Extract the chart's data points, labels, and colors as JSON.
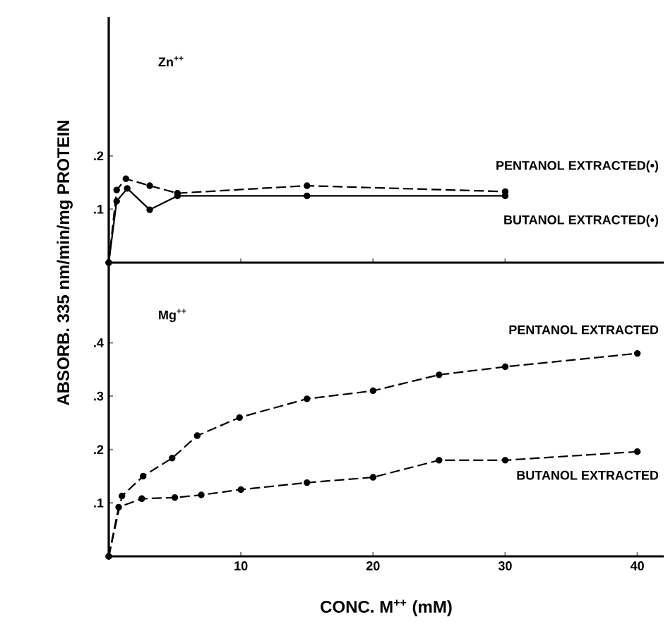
{
  "chart_data": [
    {
      "type": "line",
      "ylabel": "ABSORB. 335 nm/min/mg PROTEIN",
      "annotations": [
        "Zn$^{++}$"
      ],
      "xlim": [
        0,
        42
      ],
      "xticks": [
        {
          "value": 10,
          "label": null
        },
        {
          "value": 20,
          "label": null
        },
        {
          "value": 30,
          "label": null
        }
      ],
      "ylim": [
        0,
        0.46
      ],
      "yticks": [
        {
          "value": 0.1,
          "label": ".1"
        },
        {
          "value": 0.2,
          "label": ".2"
        }
      ],
      "tick_labels": "y",
      "marker": "circle",
      "series": [
        {
          "name": "PENTANOL EXTRACTED(•)",
          "color": "#000000",
          "line_style": "dashed",
          "x": [
            0,
            0.6,
            1.3,
            3.1,
            5.2,
            15,
            30
          ],
          "values": [
            0,
            0.136,
            0.157,
            0.144,
            0.13,
            0.144,
            0.133
          ]
        },
        {
          "name": "BUTANOL EXTRACTED(•)",
          "color": "#000000",
          "line_style": "solid",
          "x": [
            0,
            0.6,
            1.4,
            3.1,
            5.2,
            15,
            30
          ],
          "values": [
            0,
            0.115,
            0.139,
            0.099,
            0.125,
            0.125,
            0.125
          ]
        }
      ]
    },
    {
      "type": "line",
      "xlabel": "CONC. M$^{++}$ (mM)",
      "annotations": [
        "Mg$^{++}$"
      ],
      "xlim": [
        0,
        42
      ],
      "xticks": [
        10,
        20,
        30,
        40
      ],
      "ylim": [
        0,
        0.55
      ],
      "yticks": [
        {
          "value": 0.1,
          "label": ".1"
        },
        {
          "value": 0.2,
          "label": ".2"
        },
        {
          "value": 0.3,
          "label": ".3"
        },
        {
          "value": 0.4,
          "label": ".4"
        }
      ],
      "marker": "circle",
      "series": [
        {
          "name": "PENTANOL EXTRACTED",
          "color": "#000000",
          "line_style": "dashed",
          "x": [
            0,
            1.0,
            2.6,
            4.8,
            6.7,
            9.9,
            15,
            20,
            25,
            30,
            40
          ],
          "values": [
            0,
            0.113,
            0.15,
            0.184,
            0.226,
            0.26,
            0.295,
            0.31,
            0.34,
            0.355,
            0.38
          ]
        },
        {
          "name": "BUTANOL EXTRACTED",
          "color": "#000000",
          "line_style": "dashed",
          "x": [
            0,
            0.75,
            2.5,
            5,
            7,
            10,
            15,
            20,
            25,
            30,
            40
          ],
          "values": [
            0,
            0.092,
            0.108,
            0.11,
            0.115,
            0.125,
            0.138,
            0.148,
            0.18,
            0.18,
            0.196
          ]
        }
      ]
    }
  ]
}
